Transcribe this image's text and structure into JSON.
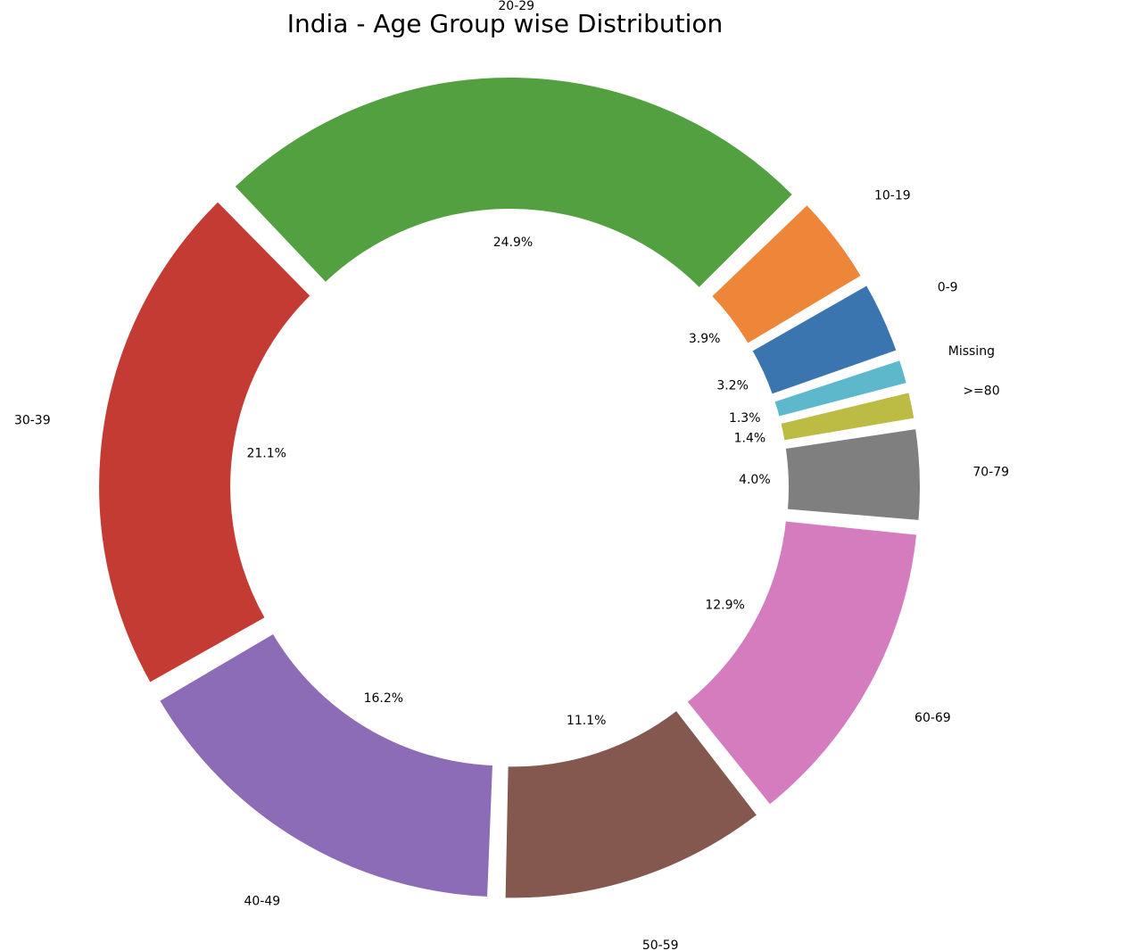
{
  "chart_data": {
    "type": "pie",
    "donut": true,
    "title": "India - Age Group wise Distribution",
    "slices": [
      {
        "label": "20-29",
        "pct_label": "24.9%",
        "value": 24.9,
        "color": "#52a040"
      },
      {
        "label": "10-19",
        "pct_label": "3.9%",
        "value": 3.9,
        "color": "#ee8639"
      },
      {
        "label": "0-9",
        "pct_label": "3.2%",
        "value": 3.2,
        "color": "#3b75af"
      },
      {
        "label": "Missing",
        "pct_label": "1.3%",
        "value": 1.3,
        "color": "#5cb8ca"
      },
      {
        "label": ">=80",
        "pct_label": "1.4%",
        "value": 1.4,
        "color": "#bcbc45"
      },
      {
        "label": "70-79",
        "pct_label": "4.0%",
        "value": 4.0,
        "color": "#7f7f7f"
      },
      {
        "label": "60-69",
        "pct_label": "12.9%",
        "value": 12.9,
        "color": "#d57cbe"
      },
      {
        "label": "50-59",
        "pct_label": "11.1%",
        "value": 11.1,
        "color": "#84584f"
      },
      {
        "label": "40-49",
        "pct_label": "16.2%",
        "value": 16.2,
        "color": "#8c6bb7"
      },
      {
        "label": "30-39",
        "pct_label": "21.1%",
        "value": 21.1,
        "color": "#c43b33"
      }
    ]
  }
}
